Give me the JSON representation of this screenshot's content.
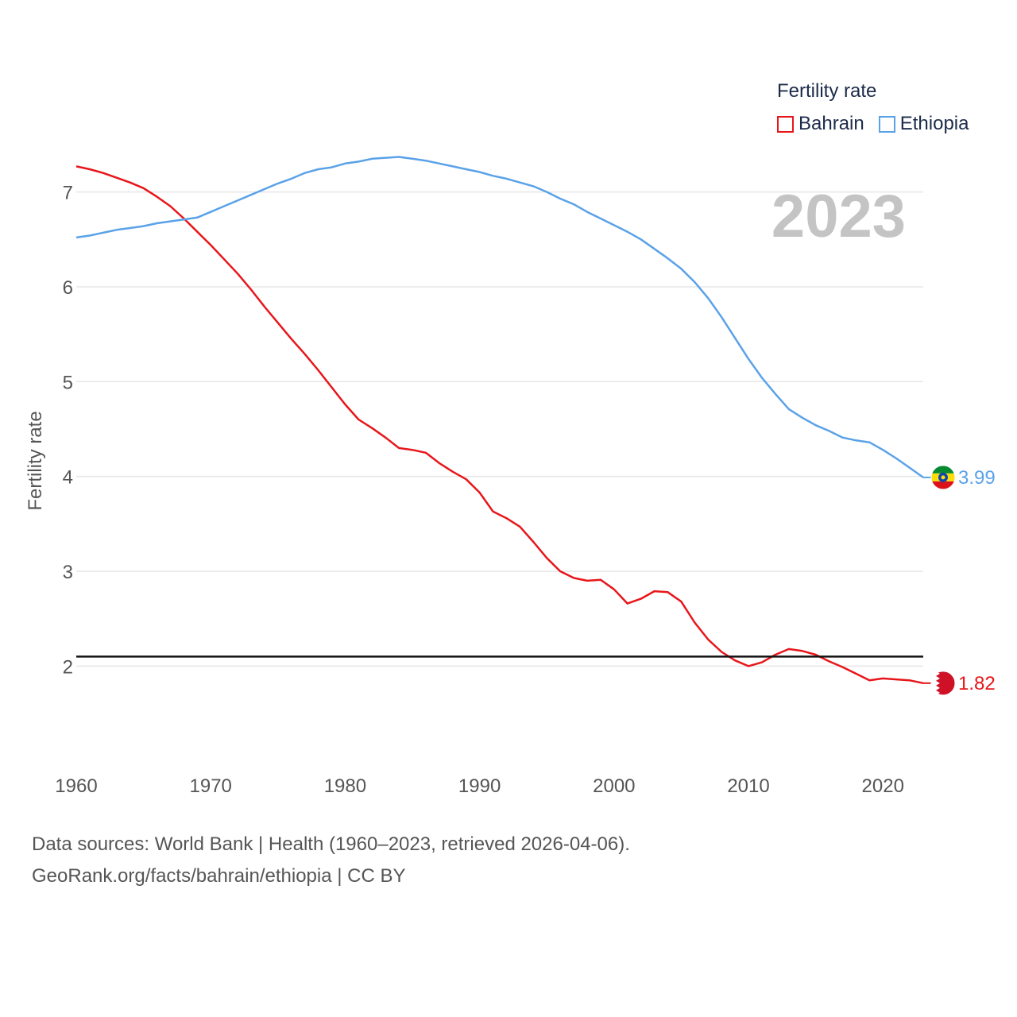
{
  "legend": {
    "title": "Fertility rate",
    "items": [
      {
        "label": "Bahrain",
        "color": "#e8161b"
      },
      {
        "label": "Ethiopia",
        "color": "#5aa2e8"
      }
    ]
  },
  "footer": {
    "line1": "Data sources: World Bank | Health (1960–2023, retrieved 2026-04-06).",
    "line2": "GeoRank.org/facts/bahrain/ethiopia | CC BY"
  },
  "chart_data": {
    "type": "line",
    "year_label": "2023",
    "ylabel": "Fertility rate",
    "xlim": [
      1960,
      2023
    ],
    "ylim": [
      1.45,
      7.6
    ],
    "x_ticks": [
      1960,
      1970,
      1980,
      1990,
      2000,
      2010,
      2020
    ],
    "y_ticks": [
      2,
      3,
      4,
      5,
      6,
      7
    ],
    "reference_line": 2.1,
    "x": [
      1960,
      1961,
      1962,
      1963,
      1964,
      1965,
      1966,
      1967,
      1968,
      1969,
      1970,
      1971,
      1972,
      1973,
      1974,
      1975,
      1976,
      1977,
      1978,
      1979,
      1980,
      1981,
      1982,
      1983,
      1984,
      1985,
      1986,
      1987,
      1988,
      1989,
      1990,
      1991,
      1992,
      1993,
      1994,
      1995,
      1996,
      1997,
      1998,
      1999,
      2000,
      2001,
      2002,
      2003,
      2004,
      2005,
      2006,
      2007,
      2008,
      2009,
      2010,
      2011,
      2012,
      2013,
      2014,
      2015,
      2016,
      2017,
      2018,
      2019,
      2020,
      2021,
      2022,
      2023
    ],
    "series": [
      {
        "name": "Bahrain",
        "color": "#e8161b",
        "end_label": "1.82",
        "values": [
          7.27,
          7.24,
          7.2,
          7.15,
          7.1,
          7.04,
          6.95,
          6.85,
          6.72,
          6.58,
          6.44,
          6.29,
          6.14,
          5.97,
          5.79,
          5.62,
          5.45,
          5.29,
          5.12,
          4.94,
          4.76,
          4.6,
          4.51,
          4.41,
          4.3,
          4.28,
          4.25,
          4.14,
          4.05,
          3.97,
          3.83,
          3.63,
          3.56,
          3.47,
          3.31,
          3.14,
          3.0,
          2.93,
          2.9,
          2.91,
          2.81,
          2.66,
          2.71,
          2.79,
          2.78,
          2.68,
          2.46,
          2.28,
          2.15,
          2.06,
          2.0,
          2.04,
          2.12,
          2.18,
          2.16,
          2.12,
          2.05,
          1.99,
          1.92,
          1.85,
          1.87,
          1.86,
          1.85,
          1.82
        ]
      },
      {
        "name": "Ethiopia",
        "color": "#5aa2e8",
        "end_label": "3.99",
        "values": [
          6.52,
          6.54,
          6.57,
          6.6,
          6.62,
          6.64,
          6.67,
          6.69,
          6.71,
          6.73,
          6.79,
          6.85,
          6.91,
          6.97,
          7.03,
          7.09,
          7.14,
          7.2,
          7.24,
          7.26,
          7.3,
          7.32,
          7.35,
          7.36,
          7.37,
          7.35,
          7.33,
          7.3,
          7.27,
          7.24,
          7.21,
          7.17,
          7.14,
          7.1,
          7.06,
          7.0,
          6.93,
          6.87,
          6.79,
          6.72,
          6.65,
          6.58,
          6.5,
          6.4,
          6.3,
          6.19,
          6.05,
          5.88,
          5.68,
          5.46,
          5.24,
          5.04,
          4.87,
          4.71,
          4.62,
          4.54,
          4.48,
          4.41,
          4.38,
          4.36,
          4.28,
          4.19,
          4.09,
          3.99
        ]
      }
    ]
  }
}
